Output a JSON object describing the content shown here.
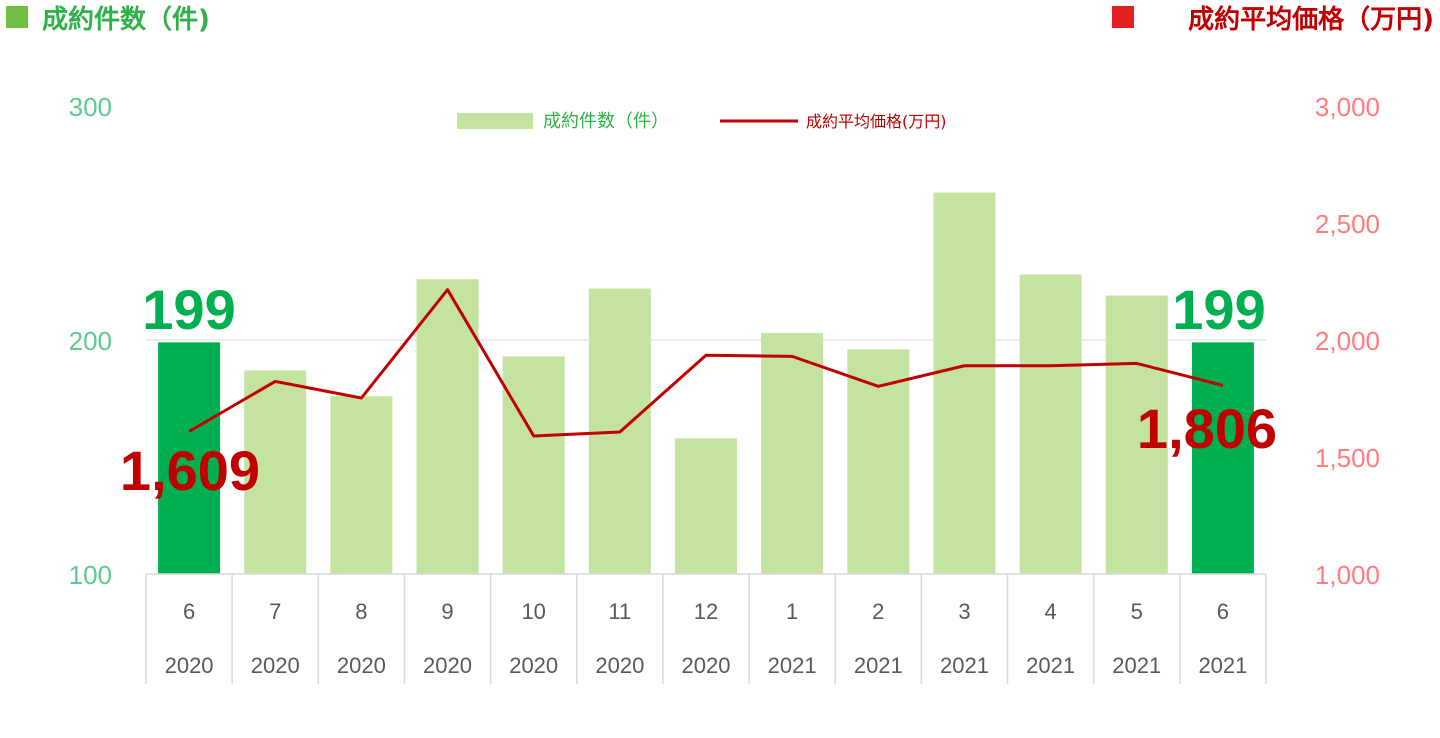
{
  "header": {
    "left_title": "成約件数（件)",
    "right_title": "成約平均価格（万円)"
  },
  "colors": {
    "count_bar": "#c5e3a0",
    "count_bar_highlight": "#00b050",
    "price_line": "#c00000",
    "left_axis_text": "#5fca8e",
    "right_axis_text": "#ff7c80",
    "left_title": "#2fb14a",
    "right_title": "#c00000",
    "count_label": "#00b050",
    "price_label": "#c00000",
    "legend_count_text": "#2fb14a",
    "legend_price_text": "#c00000"
  },
  "legend": {
    "count_label": "成約件数（件）",
    "price_label": "成約平均価格(万円)"
  },
  "annotations": {
    "first_count": "199",
    "last_count": "199",
    "first_price": "1,609",
    "last_price": "1,806"
  },
  "chart_data": {
    "type": "bar",
    "categories": [
      "6",
      "7",
      "8",
      "9",
      "10",
      "11",
      "12",
      "1",
      "2",
      "3",
      "4",
      "5",
      "6"
    ],
    "years": [
      "2020",
      "2020",
      "2020",
      "2020",
      "2020",
      "2020",
      "2020",
      "2021",
      "2021",
      "2021",
      "2021",
      "2021",
      "2021"
    ],
    "series": [
      {
        "name": "成約件数（件）",
        "type": "bar",
        "axis": "left",
        "values": [
          199,
          187,
          176,
          226,
          193,
          222,
          158,
          203,
          196,
          263,
          228,
          219,
          199
        ],
        "highlight_indices": [
          0,
          12
        ]
      },
      {
        "name": "成約平均価格(万円)",
        "type": "line",
        "axis": "right",
        "values": [
          1609,
          1823,
          1752,
          2215,
          1590,
          1607,
          1935,
          1930,
          1802,
          1890,
          1890,
          1900,
          1806
        ]
      }
    ],
    "y_left": {
      "min": 100,
      "max": 300,
      "ticks": [
        "100",
        "200",
        "300"
      ]
    },
    "y_right": {
      "min": 1000,
      "max": 3000,
      "ticks": [
        "1,000",
        "1,500",
        "2,000",
        "2,500",
        "3,000"
      ]
    },
    "grid": true,
    "legend_position": "top-center"
  }
}
